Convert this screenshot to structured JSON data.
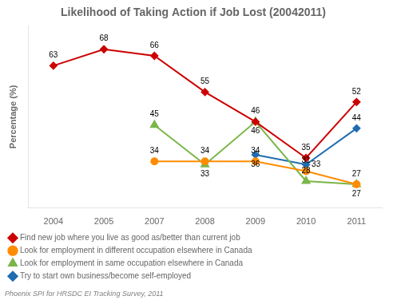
{
  "chart_data": {
    "type": "line",
    "title": "Likelihood of Taking Action if Job Lost (20042011)",
    "ylabel": "Percentage (%)",
    "annotations": [
      "Phoenix SPI for HRSDC EI Tracking Survey, 2011"
    ],
    "categories": [
      "2004",
      "2005",
      "2007",
      "2008",
      "2009",
      "2010",
      "2011"
    ],
    "series": [
      {
        "name": "Find new job where you live as good as/better than current job",
        "color": "#CC0000",
        "marker": "diamond",
        "values": [
          63,
          68,
          66,
          55,
          46,
          35,
          52
        ]
      },
      {
        "name": "Look for employment in different occupation elsewhere in Canada",
        "color": "#FF8C00",
        "marker": "circle",
        "values": [
          null,
          null,
          34,
          34,
          34,
          31,
          27
        ]
      },
      {
        "name": "Look for employment in same occupation elsewhere in Canada",
        "color": "#7AB648",
        "marker": "triangle",
        "values": [
          null,
          null,
          45,
          33,
          46,
          28,
          27
        ]
      },
      {
        "name": "Try to start own business/become self-employed",
        "color": "#1F6CB0",
        "marker": "diamond",
        "values": [
          null,
          null,
          null,
          null,
          36,
          33,
          44
        ]
      }
    ],
    "ylim": [
      20,
      75
    ],
    "grid": false,
    "legend": "bottom",
    "data_labels": true,
    "tick_labels": "x"
  }
}
